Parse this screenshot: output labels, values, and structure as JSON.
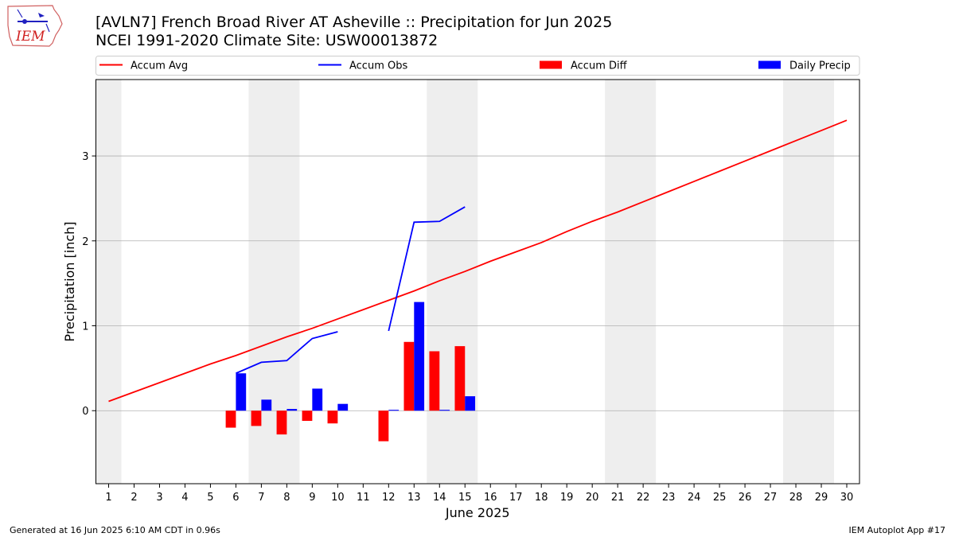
{
  "logo_text": "IEM",
  "title_line1": "[AVLN7] French Broad River  AT Asheville :: Precipitation for Jun 2025",
  "title_line2": "NCEI 1991-2020 Climate Site: USW00013872",
  "footer_left": "Generated at 16 Jun 2025 6:10 AM CDT in 0.96s",
  "footer_right": "IEM Autoplot App #17",
  "colors": {
    "avg": "#ff0000",
    "obs": "#0000ff",
    "diff": "#ff0000",
    "daily": "#0000ff",
    "weekend": "#eeeeee",
    "grid": "#b0b0b0"
  },
  "chart_data": {
    "type": "bar",
    "xlabel": "June 2025",
    "ylabel": "Precipitation [inch]",
    "xlim": [
      0.5,
      30.5
    ],
    "ylim": [
      -0.86,
      3.9
    ],
    "yticks": [
      0,
      1,
      2,
      3
    ],
    "xticks": [
      1,
      2,
      3,
      4,
      5,
      6,
      7,
      8,
      9,
      10,
      11,
      12,
      13,
      14,
      15,
      16,
      17,
      18,
      19,
      20,
      21,
      22,
      23,
      24,
      25,
      26,
      27,
      28,
      29,
      30
    ],
    "grid": "horizontal",
    "weekend_spans": [
      [
        0.5,
        1.5
      ],
      [
        6.5,
        8.5
      ],
      [
        13.5,
        15.5
      ],
      [
        20.5,
        22.5
      ],
      [
        27.5,
        29.5
      ]
    ],
    "legend": {
      "placement": "top",
      "entries": [
        {
          "label": "Accum Avg",
          "kind": "line",
          "color": "#ff0000"
        },
        {
          "label": "Accum Obs",
          "kind": "line",
          "color": "#0000ff"
        },
        {
          "label": "Accum Diff",
          "kind": "bar",
          "color": "#ff0000"
        },
        {
          "label": "Daily Precip",
          "kind": "bar",
          "color": "#0000ff"
        }
      ]
    },
    "accum_avg": {
      "days": [
        1,
        2,
        3,
        4,
        5,
        6,
        7,
        8,
        9,
        10,
        11,
        12,
        13,
        14,
        15,
        16,
        17,
        18,
        19,
        20,
        21,
        22,
        23,
        24,
        25,
        26,
        27,
        28,
        29,
        30
      ],
      "values": [
        0.11,
        0.22,
        0.33,
        0.44,
        0.55,
        0.65,
        0.76,
        0.87,
        0.97,
        1.08,
        1.19,
        1.3,
        1.41,
        1.53,
        1.64,
        1.76,
        1.87,
        1.98,
        2.11,
        2.23,
        2.34,
        2.46,
        2.58,
        2.7,
        2.82,
        2.94,
        3.06,
        3.18,
        3.3,
        3.42
      ]
    },
    "accum_obs": [
      {
        "days": [
          6,
          7,
          8,
          9,
          10
        ],
        "values": [
          0.44,
          0.57,
          0.59,
          0.85,
          0.93
        ]
      },
      {
        "days": [
          12,
          13,
          14,
          15
        ],
        "values": [
          0.94,
          2.22,
          2.23,
          2.4
        ]
      }
    ],
    "accum_diff": {
      "days": [
        6,
        7,
        8,
        9,
        10,
        12,
        13,
        14,
        15
      ],
      "values": [
        -0.2,
        -0.18,
        -0.28,
        -0.12,
        -0.15,
        -0.36,
        0.81,
        0.7,
        0.76
      ]
    },
    "daily_precip": {
      "days": [
        6,
        7,
        8,
        9,
        10,
        12,
        13,
        14,
        15
      ],
      "values": [
        0.44,
        0.13,
        0.02,
        0.26,
        0.08,
        0.01,
        1.28,
        0.01,
        0.17
      ]
    }
  }
}
